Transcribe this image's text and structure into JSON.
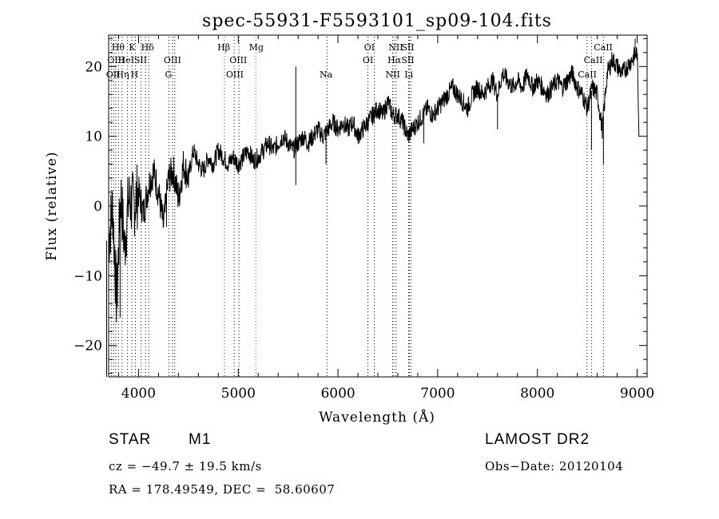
{
  "chart_data": {
    "type": "line",
    "title": "spec-55931-F5593101_sp09-104.fits",
    "xlabel": "Wavelength (Å)",
    "ylabel": "Flux (relative)",
    "xlim": [
      3700,
      9100
    ],
    "ylim": [
      -24.5,
      24.5
    ],
    "xticks": [
      4000,
      5000,
      6000,
      7000,
      8000,
      9000
    ],
    "yticks": [
      -20,
      -10,
      0,
      10,
      20
    ],
    "series": [
      {
        "x": [
          3700,
          3740,
          3780,
          3820,
          3860,
          3900,
          3950,
          4000,
          4050,
          4100,
          4150,
          4200,
          4250,
          4300,
          4350,
          4400,
          4450,
          4500,
          4550,
          4600,
          4650,
          4700,
          4750,
          4800,
          4850,
          4900,
          4950,
          5000,
          5050,
          5100,
          5150,
          5200,
          5250,
          5300,
          5350,
          5400,
          5450,
          5500,
          5550,
          5600,
          5650,
          5700,
          5750,
          5800,
          5850,
          5900,
          5950,
          6000,
          6050,
          6100,
          6150,
          6200,
          6250,
          6300,
          6350,
          6400,
          6450,
          6500,
          6550,
          6600,
          6650,
          6700,
          6750,
          6800,
          6850,
          6900,
          6950,
          7000,
          7050,
          7100,
          7150,
          7200,
          7250,
          7300,
          7350,
          7400,
          7450,
          7500,
          7550,
          7600,
          7650,
          7700,
          7750,
          7800,
          7850,
          7900,
          7950,
          8000,
          8050,
          8100,
          8150,
          8200,
          8250,
          8300,
          8350,
          8400,
          8450,
          8500,
          8550,
          8600,
          8650,
          8700,
          8750,
          8800,
          8850,
          8900,
          8950,
          9000,
          9020
        ],
        "values": [
          -5,
          0,
          -14,
          2,
          -6,
          1,
          0,
          2,
          -1,
          3,
          5,
          2,
          -3,
          4,
          5,
          1,
          6,
          4,
          8,
          6,
          5,
          7,
          6,
          8,
          7,
          6,
          7,
          6,
          7,
          8,
          6.5,
          7,
          8,
          9,
          8,
          9,
          10,
          9,
          8,
          9,
          10,
          9,
          10,
          11,
          10,
          11,
          12,
          11,
          12,
          11,
          12,
          10,
          11,
          12,
          13,
          14,
          13,
          15,
          13,
          13,
          12,
          10,
          11,
          12,
          13,
          14,
          13,
          14,
          15,
          16,
          17,
          16,
          15,
          14,
          16,
          17,
          16,
          17,
          18,
          16,
          19,
          18,
          17,
          18,
          17,
          19,
          17,
          18,
          17,
          16,
          17,
          18,
          17,
          18,
          19,
          17,
          16,
          14,
          17,
          16,
          11,
          19,
          21,
          20,
          19,
          20,
          21,
          22,
          10
        ]
      }
    ],
    "spikes": [
      {
        "x": 3680,
        "y": -25
      },
      {
        "x": 3815,
        "y": -16
      },
      {
        "x": 4280,
        "y": -3
      },
      {
        "x": 5577,
        "y": 20
      },
      {
        "x": 5577,
        "y": 3
      },
      {
        "x": 5880,
        "y": 6
      },
      {
        "x": 6860,
        "y": 9
      },
      {
        "x": 7600,
        "y": 11
      },
      {
        "x": 8542,
        "y": 8
      },
      {
        "x": 8662,
        "y": 6
      },
      {
        "x": 8980,
        "y": 24
      }
    ],
    "line_groups": [
      {
        "color": "#000000",
        "x": [
          3727,
          3750,
          3771,
          3798,
          3835,
          3889,
          3933,
          3968,
          4026,
          4070,
          4102,
          4304,
          4341,
          4363,
          4861,
          4959,
          5007,
          5890,
          6300,
          6364,
          6548,
          6583,
          6708,
          6716,
          6731,
          8498,
          8542,
          8662
        ]
      },
      {
        "color": "#c03030",
        "x": [
          4861,
          5175,
          6563
        ]
      }
    ],
    "line_labels": [
      {
        "text": "Hθ",
        "x": 3795,
        "row": 1
      },
      {
        "text": "K",
        "x": 3935,
        "row": 1
      },
      {
        "text": "Hδ",
        "x": 4090,
        "row": 1
      },
      {
        "text": "Hβ",
        "x": 4855,
        "row": 1
      },
      {
        "text": "Mg",
        "x": 5180,
        "row": 1
      },
      {
        "text": "OI",
        "x": 6315,
        "row": 1
      },
      {
        "text": "NII",
        "x": 6580,
        "row": 1
      },
      {
        "text": "SII",
        "x": 6700,
        "row": 1
      },
      {
        "text": "CaII",
        "x": 8660,
        "row": 1
      },
      {
        "text": "OIII",
        "x": 3775,
        "row": 2
      },
      {
        "text": "HeI",
        "x": 3875,
        "row": 2
      },
      {
        "text": "SII",
        "x": 4020,
        "row": 2
      },
      {
        "text": "OIII",
        "x": 4340,
        "row": 2
      },
      {
        "text": "OIII",
        "x": 5000,
        "row": 2
      },
      {
        "text": "OI",
        "x": 6300,
        "row": 2
      },
      {
        "text": "Hα",
        "x": 6565,
        "row": 2
      },
      {
        "text": "SII",
        "x": 6700,
        "row": 2
      },
      {
        "text": "CaII",
        "x": 8560,
        "row": 2
      },
      {
        "text": "OII",
        "x": 3745,
        "row": 3
      },
      {
        "text": "Hη",
        "x": 3840,
        "row": 3
      },
      {
        "text": "H",
        "x": 3960,
        "row": 3
      },
      {
        "text": "G",
        "x": 4300,
        "row": 3
      },
      {
        "text": "OIII",
        "x": 4965,
        "row": 3
      },
      {
        "text": "Na",
        "x": 5880,
        "row": 3
      },
      {
        "text": "NII",
        "x": 6550,
        "row": 3
      },
      {
        "text": "Li",
        "x": 6710,
        "row": 3
      },
      {
        "text": "CaII",
        "x": 8500,
        "row": 3
      }
    ]
  },
  "info": {
    "object_class": "STAR",
    "subclass": "M1",
    "survey": "LAMOST DR2",
    "redshift": "cz = −49.7 ± 19.5 km/s",
    "obs_date": "Obs−Date: 20120104",
    "coords": "RA = 178.49549, DEC =  58.60607"
  }
}
